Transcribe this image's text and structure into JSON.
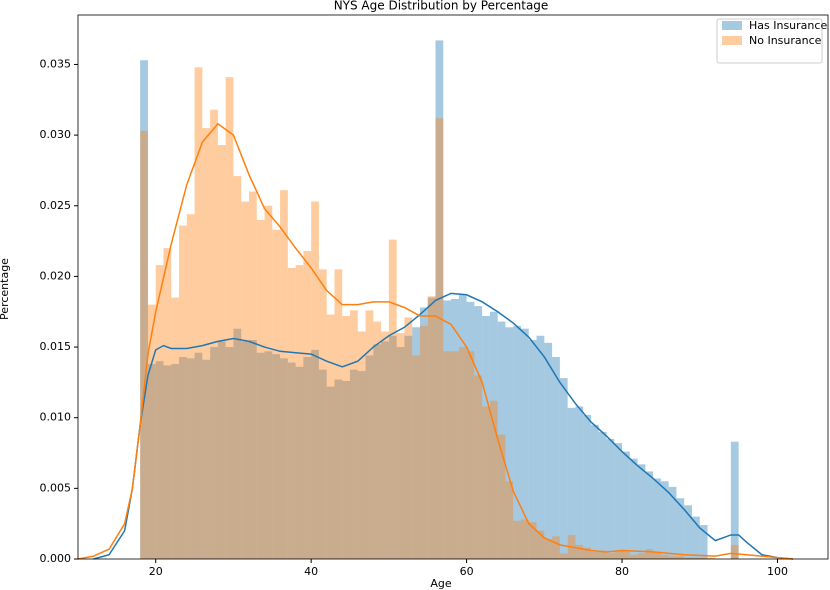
{
  "chart_data": {
    "type": "histogram",
    "title": "NYS Age Distribution by Percentage",
    "x_label": "Age",
    "y_label": "Percentage",
    "xlim": [
      10,
      106.5
    ],
    "ylim": [
      0,
      0.0385
    ],
    "xticks": [
      20,
      40,
      60,
      80,
      100
    ],
    "yticks": [
      {
        "value": 0,
        "label": "0.000"
      },
      {
        "value": 0.005,
        "label": "0.005"
      },
      {
        "value": 0.01,
        "label": "0.010"
      },
      {
        "value": 0.015,
        "label": "0.015"
      },
      {
        "value": 0.02,
        "label": "0.020"
      },
      {
        "value": 0.025,
        "label": "0.025"
      },
      {
        "value": 0.03,
        "label": "0.030"
      },
      {
        "value": 0.035,
        "label": "0.035"
      }
    ],
    "legend": "upper right",
    "bins": [
      18,
      19,
      20,
      21,
      22,
      23,
      24,
      25,
      26,
      27,
      28,
      29,
      30,
      31,
      32,
      33,
      34,
      35,
      36,
      37,
      38,
      39,
      40,
      41,
      42,
      43,
      44,
      45,
      46,
      47,
      48,
      49,
      50,
      51,
      52,
      53,
      54,
      55,
      56,
      57,
      58,
      59,
      60,
      61,
      62,
      63,
      64,
      65,
      66,
      67,
      68,
      69,
      70,
      71,
      72,
      73,
      74,
      75,
      76,
      77,
      78,
      79,
      80,
      81,
      82,
      83,
      84,
      85,
      86,
      87,
      88,
      89,
      90,
      91,
      92,
      93,
      94,
      95
    ],
    "series": [
      {
        "name": "Has Insurance",
        "color": "#1f77b4",
        "values": [
          0.0353,
          0.0138,
          0.014,
          0.0137,
          0.0138,
          0.0143,
          0.0142,
          0.0146,
          0.0141,
          0.015,
          0.0154,
          0.015,
          0.0163,
          0.0154,
          0.0155,
          0.0146,
          0.0147,
          0.0145,
          0.0142,
          0.0139,
          0.0136,
          0.0143,
          0.0148,
          0.0134,
          0.0122,
          0.0127,
          0.0126,
          0.0134,
          0.0133,
          0.0144,
          0.0152,
          0.0154,
          0.0158,
          0.015,
          0.0158,
          0.0164,
          0.0178,
          0.0185,
          0.0367,
          0.0183,
          0.0184,
          0.0187,
          0.0182,
          0.0179,
          0.0172,
          0.0175,
          0.0168,
          0.0164,
          0.0165,
          0.0163,
          0.0155,
          0.0158,
          0.0153,
          0.0143,
          0.0128,
          0.0107,
          0.0108,
          0.0102,
          0.0095,
          0.009,
          0.0085,
          0.0082,
          0.0076,
          0.0071,
          0.0067,
          0.0062,
          0.0057,
          0.0055,
          0.0051,
          0.0043,
          0.0038,
          0.003,
          0.0024,
          0,
          0,
          0,
          0.0083
        ],
        "kde": {
          "x": [
            12,
            14,
            16,
            17,
            18,
            19,
            20,
            21,
            22,
            24,
            26,
            28,
            30,
            32,
            34,
            36,
            38,
            40,
            42,
            44,
            46,
            48,
            50,
            52,
            54,
            56,
            58,
            60,
            62,
            64,
            66,
            68,
            70,
            72,
            74,
            76,
            78,
            80,
            82,
            84,
            86,
            88,
            90,
            92,
            94,
            95,
            96,
            98,
            100,
            102
          ],
          "y": [
            0,
            0.0003,
            0.002,
            0.005,
            0.0095,
            0.013,
            0.0148,
            0.0151,
            0.0149,
            0.0149,
            0.0151,
            0.0154,
            0.0156,
            0.0154,
            0.015,
            0.0147,
            0.0146,
            0.0145,
            0.014,
            0.0136,
            0.014,
            0.015,
            0.0158,
            0.0164,
            0.0173,
            0.0183,
            0.0188,
            0.0187,
            0.0182,
            0.0175,
            0.0167,
            0.0157,
            0.0143,
            0.0125,
            0.011,
            0.0097,
            0.0087,
            0.0076,
            0.0066,
            0.0057,
            0.0047,
            0.0035,
            0.0022,
            0.0013,
            0.0017,
            0.0017,
            0.0012,
            0.0003,
            0.0001,
            0
          ]
        }
      },
      {
        "name": "No Insurance",
        "color": "#ff7f0e",
        "values": [
          0.0303,
          0.018,
          0.0208,
          0.022,
          0.0185,
          0.0236,
          0.0244,
          0.0348,
          0.0305,
          0.0318,
          0.0293,
          0.0341,
          0.0271,
          0.0253,
          0.026,
          0.024,
          0.025,
          0.0233,
          0.0261,
          0.0206,
          0.0208,
          0.0218,
          0.0253,
          0.0205,
          0.0173,
          0.0205,
          0.0172,
          0.0176,
          0.0161,
          0.0176,
          0.0168,
          0.0161,
          0.0226,
          0.016,
          0.0171,
          0.0144,
          0.0165,
          0.0186,
          0.0312,
          0.0147,
          0.0147,
          0.015,
          0.0147,
          0.013,
          0.0108,
          0.0112,
          0.0088,
          0.0055,
          0.0027,
          0.0028,
          0.0026,
          0.002,
          0.0014,
          0.0016,
          0.0004,
          0.0017,
          0.001,
          0.0008,
          0.0005,
          0.0006,
          0.0004,
          0.0006,
          0.0006,
          0.0003,
          0.0004,
          0.0007,
          0.0005,
          0.0003,
          0.0002,
          0.0002,
          0.0001,
          0.0001,
          0.0001,
          0.0001,
          0,
          0,
          0.001
        ],
        "kde": {
          "x": [
            10,
            12,
            14,
            16,
            17,
            18,
            19,
            20,
            22,
            24,
            26,
            28,
            30,
            32,
            34,
            36,
            38,
            40,
            42,
            44,
            46,
            48,
            50,
            52,
            54,
            56,
            58,
            60,
            62,
            64,
            66,
            68,
            70,
            72,
            74,
            76,
            78,
            80,
            84,
            88,
            92,
            94,
            96,
            100,
            102
          ],
          "y": [
            0,
            0.0002,
            0.0007,
            0.0025,
            0.005,
            0.0095,
            0.0145,
            0.0175,
            0.0223,
            0.0265,
            0.0295,
            0.0308,
            0.03,
            0.0272,
            0.0248,
            0.0235,
            0.022,
            0.0206,
            0.019,
            0.018,
            0.018,
            0.0182,
            0.0182,
            0.0178,
            0.0172,
            0.0172,
            0.0166,
            0.015,
            0.0125,
            0.0085,
            0.0048,
            0.0025,
            0.0015,
            0.001,
            0.0008,
            0.0006,
            0.0005,
            0.0006,
            0.0005,
            0.0003,
            0.0002,
            0.0004,
            0.0003,
            0.0001,
            0
          ]
        }
      }
    ]
  }
}
